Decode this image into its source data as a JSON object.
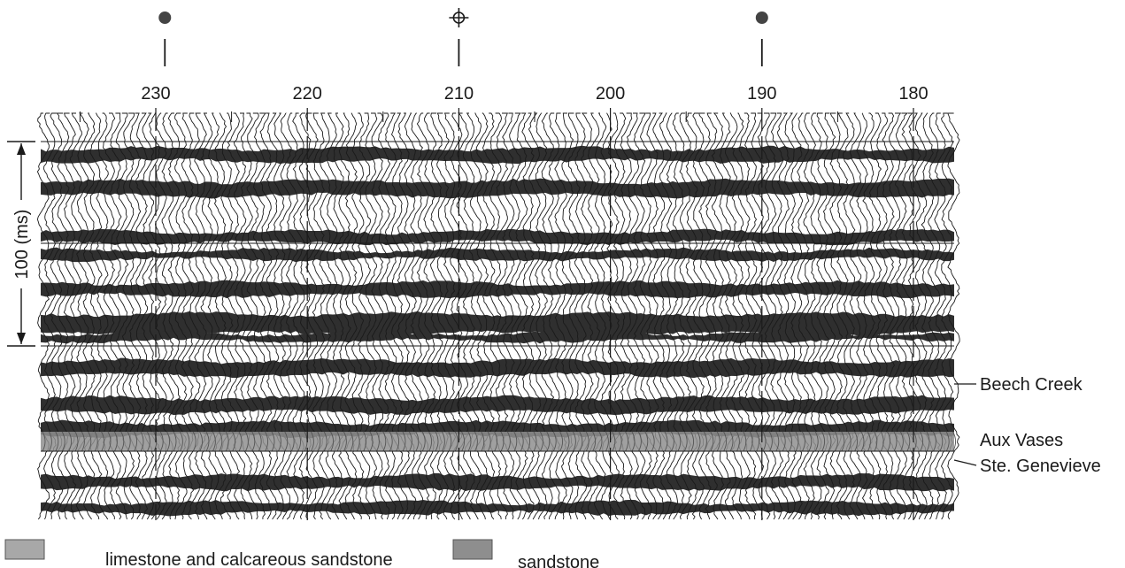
{
  "cdp_axis": {
    "ticks": [
      {
        "value": 230,
        "label": "230"
      },
      {
        "value": 220,
        "label": "220"
      },
      {
        "value": 210,
        "label": "210"
      },
      {
        "value": 200,
        "label": "200"
      },
      {
        "value": 190,
        "label": "190"
      },
      {
        "value": 180,
        "label": "180"
      }
    ],
    "range": [
      235,
      177
    ]
  },
  "wells": [
    {
      "cdp": 229.4,
      "symbol": "filled-dot-icon"
    },
    {
      "cdp": 210,
      "symbol": "dry-hole-icon"
    },
    {
      "cdp": 190,
      "symbol": "filled-dot-icon"
    }
  ],
  "time_scale": {
    "label": "100 (ms)",
    "value_ms": 100
  },
  "horizons": [
    {
      "name": "Beech Creek",
      "label": "Beech Creek"
    },
    {
      "name": "Aux Vases",
      "label": "Aux Vases"
    },
    {
      "name": "Ste. Genevieve",
      "label": "Ste. Genevieve"
    }
  ],
  "legend": [
    {
      "label": "limestone and calcareous sandstone",
      "color": "#a8a8a8"
    },
    {
      "label": "sandstone",
      "color": "#8e8e8e"
    }
  ],
  "colors": {
    "ink": "#1a1a1a",
    "trace_fill": "#2f2f2f",
    "shaded_unit": "#8f8f8f",
    "background": "#ffffff"
  }
}
